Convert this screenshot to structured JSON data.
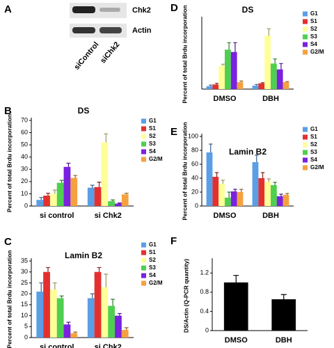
{
  "blot": {
    "panel": "A",
    "bands": [
      "Chk2",
      "Actin"
    ],
    "lanes": [
      "siControl",
      "siChk2"
    ]
  },
  "chart_data": [
    {
      "type": "bar",
      "panel": "B",
      "title": "DS",
      "ylabel": "Percent of total Brdu incorporation",
      "categories": [
        "si control",
        "si Chk2"
      ],
      "ylim": [
        0,
        70
      ],
      "yticks": [
        0,
        10,
        20,
        30,
        40,
        50,
        60,
        70
      ],
      "series": [
        {
          "name": "G1",
          "color": "#5a9ee6",
          "values": [
            5,
            15
          ],
          "errors": [
            2,
            2
          ]
        },
        {
          "name": "S1",
          "color": "#e3302f",
          "values": [
            8.5,
            15.5
          ],
          "errors": [
            2,
            4
          ]
        },
        {
          "name": "S2",
          "color": "#ffff99",
          "values": [
            10,
            52
          ],
          "errors": [
            3,
            7
          ]
        },
        {
          "name": "S3",
          "color": "#4fcf4f",
          "values": [
            19,
            4
          ],
          "errors": [
            2,
            1
          ]
        },
        {
          "name": "S4",
          "color": "#7a22e0",
          "values": [
            32,
            2
          ],
          "errors": [
            3,
            0.5
          ]
        },
        {
          "name": "G2/M",
          "color": "#f5a140",
          "values": [
            23,
            9.5
          ],
          "errors": [
            2,
            1
          ]
        }
      ]
    },
    {
      "type": "bar",
      "panel": "C",
      "title": "Lamin B2",
      "ylabel": "Percent of total Brdu incorporation",
      "categories": [
        "si control",
        "si Chk2"
      ],
      "ylim": [
        0,
        35
      ],
      "yticks": [
        0,
        5,
        10,
        15,
        20,
        25,
        30,
        35
      ],
      "series": [
        {
          "name": "G1",
          "color": "#5a9ee6",
          "values": [
            21,
            18
          ],
          "errors": [
            4,
            2
          ]
        },
        {
          "name": "S1",
          "color": "#e3302f",
          "values": [
            30,
            30
          ],
          "errors": [
            2,
            2
          ]
        },
        {
          "name": "S2",
          "color": "#ffff99",
          "values": [
            22,
            23
          ],
          "errors": [
            3,
            6
          ]
        },
        {
          "name": "S3",
          "color": "#4fcf4f",
          "values": [
            18,
            14.5
          ],
          "errors": [
            1,
            3
          ]
        },
        {
          "name": "S4",
          "color": "#7a22e0",
          "values": [
            6,
            10
          ],
          "errors": [
            1,
            1
          ]
        },
        {
          "name": "G2/M",
          "color": "#f5a140",
          "values": [
            2,
            3.5
          ],
          "errors": [
            0.5,
            1
          ]
        }
      ]
    },
    {
      "type": "bar",
      "panel": "D",
      "title": "DS",
      "ylabel": "Percent of total Brdu incorporation",
      "categories": [
        "DMSO",
        "DBH"
      ],
      "ylim": [
        0,
        60
      ],
      "series": [
        {
          "name": "G1",
          "color": "#5a9ee6",
          "values": [
            2.5,
            3
          ],
          "errors": [
            1,
            1
          ]
        },
        {
          "name": "S1",
          "color": "#e3302f",
          "values": [
            4,
            5
          ],
          "errors": [
            1,
            0.5
          ]
        },
        {
          "name": "S2",
          "color": "#ffff99",
          "values": [
            20,
            46
          ],
          "errors": [
            1.5,
            6
          ]
        },
        {
          "name": "S3",
          "color": "#4fcf4f",
          "values": [
            34,
            22
          ],
          "errors": [
            6,
            4
          ]
        },
        {
          "name": "S4",
          "color": "#7a22e0",
          "values": [
            32,
            17
          ],
          "errors": [
            8,
            5
          ]
        },
        {
          "name": "G2/M",
          "color": "#f5a140",
          "values": [
            6,
            6
          ],
          "errors": [
            1,
            0.5
          ]
        }
      ]
    },
    {
      "type": "bar",
      "panel": "E",
      "title": "Lamin B2",
      "ylabel": "Percent of total Brdu incorporation",
      "categories": [
        "DMSO",
        "DBH"
      ],
      "ylim": [
        0,
        100
      ],
      "yticks": [
        0,
        20,
        40,
        60,
        80,
        100
      ],
      "series": [
        {
          "name": "G1",
          "color": "#5a9ee6",
          "values": [
            77,
            63
          ],
          "errors": [
            12,
            10
          ]
        },
        {
          "name": "S1",
          "color": "#e3302f",
          "values": [
            42,
            40
          ],
          "errors": [
            6,
            8
          ]
        },
        {
          "name": "S2",
          "color": "#ffff99",
          "values": [
            32,
            35
          ],
          "errors": [
            5,
            4
          ]
        },
        {
          "name": "S3",
          "color": "#4fcf4f",
          "values": [
            12,
            30
          ],
          "errors": [
            8,
            4
          ]
        },
        {
          "name": "S4",
          "color": "#7a22e0",
          "values": [
            21,
            14
          ],
          "errors": [
            3,
            3
          ]
        },
        {
          "name": "G2/M",
          "color": "#f5a140",
          "values": [
            20,
            16
          ],
          "errors": [
            4,
            2
          ]
        }
      ]
    },
    {
      "type": "bar",
      "panel": "F",
      "ylabel": "DS/Actin (Q-PCR quantity)",
      "categories": [
        "DMSO",
        "DBH"
      ],
      "ylim": [
        0,
        1.45
      ],
      "yticks": [
        0,
        0.4,
        0.8,
        1.2
      ],
      "color": "#000000",
      "values": [
        1.0,
        0.65
      ],
      "errors": [
        0.15,
        0.1
      ]
    }
  ]
}
